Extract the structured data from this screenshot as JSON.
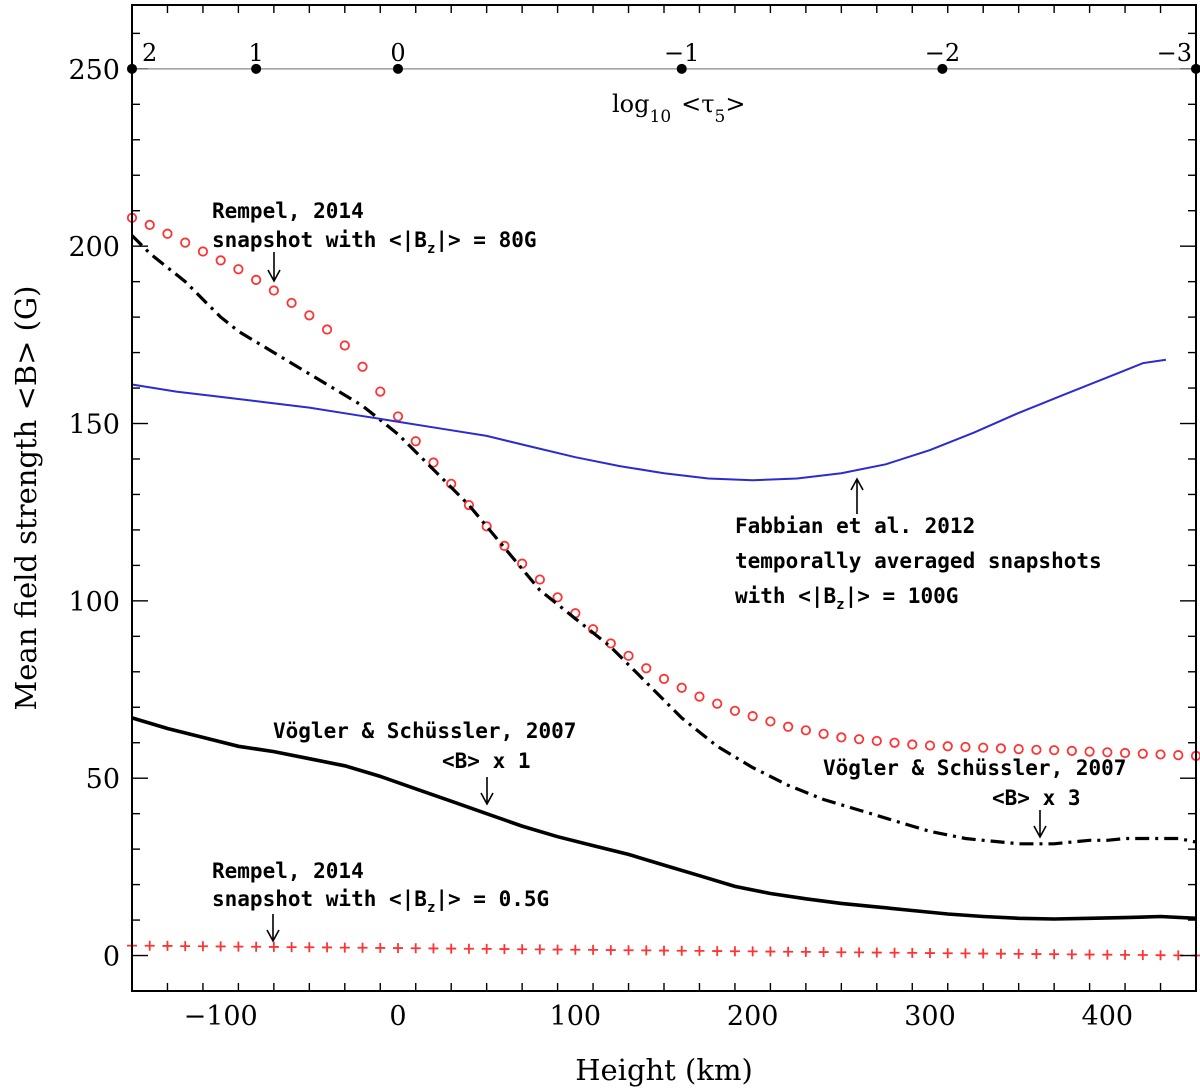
{
  "chart_data": {
    "type": "line",
    "xlabel": "Height (km)",
    "ylabel": "Mean field strength <B> (G)",
    "xlim": [
      -150,
      450
    ],
    "ylim": [
      -10,
      268
    ],
    "x_ticks": [
      -100,
      0,
      100,
      200,
      300,
      400
    ],
    "x_tick_labels": [
      "−100",
      "0",
      "100",
      "200",
      "300",
      "400"
    ],
    "y_ticks": [
      0,
      50,
      100,
      150,
      200,
      250
    ],
    "y_tick_labels": [
      "0",
      "50",
      "100",
      "150",
      "200",
      "250"
    ],
    "top_axis": {
      "label_main": "log",
      "label_sub": "10",
      "label_rest": "<τ",
      "label_sub2": "5",
      "label_end": ">",
      "y_value": 250,
      "ticks": [
        {
          "x": -150,
          "label": "2"
        },
        {
          "x": -80,
          "label": "1"
        },
        {
          "x": 0,
          "label": "0"
        },
        {
          "x": 160,
          "label": "−1"
        },
        {
          "x": 307,
          "label": "−2"
        },
        {
          "x": 450,
          "label": "−3"
        }
      ]
    },
    "series": [
      {
        "style": "red-circles",
        "color": "#ff3333",
        "x": [
          -150,
          -140,
          -130,
          -120,
          -110,
          -100,
          -90,
          -80,
          -70,
          -60,
          -50,
          -40,
          -30,
          -20,
          -10,
          0,
          10,
          20,
          30,
          40,
          50,
          60,
          70,
          80,
          90,
          100,
          110,
          120,
          130,
          140,
          150,
          160,
          170,
          180,
          190,
          200,
          210,
          220,
          230,
          240,
          250,
          260,
          270,
          280,
          290,
          300,
          310,
          320,
          330,
          340,
          350,
          360,
          370,
          380,
          390,
          400,
          410,
          420,
          430,
          440,
          450
        ],
        "y": [
          208,
          206,
          203.5,
          201,
          198.5,
          196,
          193.5,
          190.5,
          187.5,
          184,
          180.5,
          176.5,
          172,
          166,
          159,
          152,
          145,
          139,
          133,
          127,
          121,
          115.5,
          110.5,
          106,
          101,
          96.5,
          92,
          88,
          84.5,
          81,
          78,
          75.5,
          73,
          71,
          69,
          67.5,
          66,
          64.5,
          63.5,
          62.5,
          61.5,
          61,
          60.5,
          60,
          59.5,
          59.2,
          59,
          58.8,
          58.6,
          58.4,
          58.2,
          58,
          57.9,
          57.7,
          57.5,
          57.3,
          57.1,
          56.9,
          56.7,
          56.5,
          56.3
        ]
      },
      {
        "style": "black-dashdot",
        "color": "#000000",
        "x": [
          -150,
          -140,
          -130,
          -120,
          -110,
          -100,
          -90,
          -80,
          -70,
          -60,
          -50,
          -40,
          -30,
          -20,
          -10,
          0,
          10,
          20,
          30,
          40,
          50,
          60,
          70,
          80,
          90,
          100,
          110,
          120,
          130,
          140,
          150,
          160,
          170,
          180,
          190,
          200,
          210,
          220,
          230,
          240,
          250,
          260,
          270,
          280,
          290,
          300,
          310,
          320,
          330,
          340,
          350,
          360,
          370,
          380,
          390,
          400,
          410,
          420,
          430,
          440,
          450
        ],
        "y": [
          203,
          198,
          194,
          190,
          185,
          180,
          176,
          173,
          170,
          167,
          164,
          161,
          158,
          155,
          151,
          147,
          142,
          137,
          132,
          127,
          121,
          115,
          109,
          103,
          99,
          95,
          91,
          87,
          82,
          77,
          72,
          67,
          63,
          59,
          56,
          53,
          50.5,
          48,
          46,
          44,
          42.5,
          41,
          39.5,
          38,
          36.5,
          35,
          34,
          33,
          32.5,
          32,
          31.5,
          31.5,
          31.5,
          32,
          32.5,
          32.5,
          33,
          33,
          33,
          33,
          32
        ]
      },
      {
        "style": "blue-solid",
        "color": "#2b2bd0",
        "x": [
          -150,
          -125,
          -100,
          -75,
          -50,
          -25,
          0,
          25,
          50,
          75,
          100,
          125,
          150,
          175,
          200,
          225,
          250,
          275,
          300,
          325,
          350,
          375,
          400,
          410,
          420,
          433
        ],
        "y": [
          161,
          159,
          157.5,
          156,
          154.5,
          152.5,
          150.5,
          148.5,
          146.5,
          143.5,
          140.5,
          138,
          136,
          134.5,
          134,
          134.5,
          136,
          138.5,
          142.5,
          147.5,
          153,
          158,
          163,
          165,
          167,
          168
        ]
      },
      {
        "style": "black-thick",
        "color": "#000000",
        "x": [
          -150,
          -130,
          -110,
          -90,
          -70,
          -50,
          -30,
          -10,
          10,
          30,
          50,
          70,
          90,
          110,
          130,
          150,
          170,
          190,
          210,
          230,
          250,
          270,
          290,
          310,
          330,
          350,
          370,
          390,
          410,
          430,
          450
        ],
        "y": [
          67,
          64,
          61.5,
          59,
          57.5,
          55.5,
          53.5,
          50.5,
          47,
          43.5,
          40,
          36.5,
          33.5,
          31,
          28.5,
          25.5,
          22.5,
          19.5,
          17.5,
          16,
          14.7,
          13.7,
          12.7,
          11.7,
          11,
          10.5,
          10.3,
          10.5,
          10.7,
          11,
          10.5
        ]
      },
      {
        "style": "red-plus",
        "color": "#ff3333",
        "x_start": -150,
        "x_end": 450,
        "x_step": 10,
        "y_start": 2.8,
        "y_end": 0
      }
    ],
    "annotations": [
      {
        "lines": [
          "Rempel, 2014",
          "snapshot with <|B₂|> = 80G"
        ]
      },
      {
        "lines": [
          "Fabbian et al. 2012",
          "temporally averaged snapshots",
          "with <|B₂|> = 100G"
        ]
      },
      {
        "lines": [
          "Vögler & Schüssler, 2007",
          "<B> x 1"
        ]
      },
      {
        "lines": [
          "Vögler & Schüssler, 2007",
          "<B> x 3"
        ]
      },
      {
        "lines": [
          "Rempel, 2014",
          "snapshot with <|B₂|> = 0.5G"
        ]
      }
    ]
  },
  "labels": {
    "rempel_80_l1": "Rempel, 2014",
    "rempel_80_l2a": "snapshot with <|B",
    "rempel_80_sub": "z",
    "rempel_80_l2b": "|> = 80G",
    "fabbian_l1": "Fabbian et al. 2012",
    "fabbian_l2": "temporally averaged snapshots",
    "fabbian_l3a": "with <|B",
    "fabbian_sub": "z",
    "fabbian_l3b": "|> = 100G",
    "vs1_l1": "Vögler & Schüssler, 2007",
    "vs1_l2": "<B> x 1",
    "vs3_l1": "Vögler & Schüssler, 2007",
    "vs3_l2": "<B> x 3",
    "rempel_05_l1": "Rempel, 2014",
    "rempel_05_l2a": "snapshot with <|B",
    "rempel_05_sub": "z",
    "rempel_05_l2b": "|> = 0.5G"
  }
}
